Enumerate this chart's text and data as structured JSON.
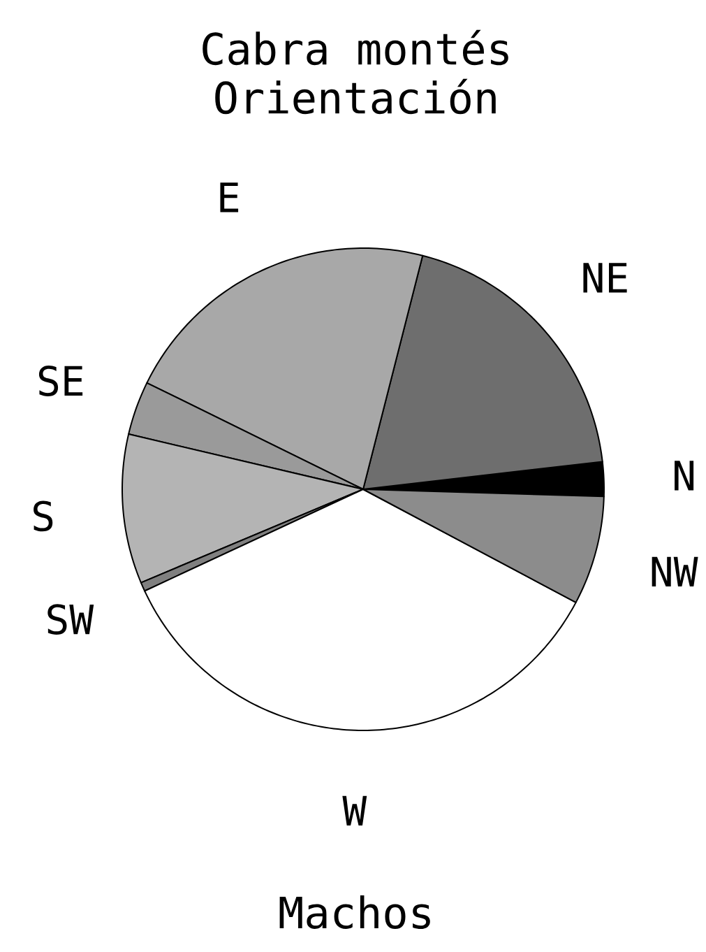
{
  "chart_data": {
    "type": "pie",
    "title": "Cabra montés",
    "subtitle": "Orientación",
    "categories": [
      "N",
      "NE",
      "E",
      "SE",
      "S",
      "SW",
      "W",
      "NW"
    ],
    "values": [
      2.3,
      19.2,
      21.7,
      3.6,
      10.0,
      0.6,
      35.3,
      7.3
    ],
    "colors": [
      "#000000",
      "#6e6e6e",
      "#a8a8a8",
      "#9a9a9a",
      "#b4b4b4",
      "#808080",
      "#ffffff",
      "#8c8c8c"
    ],
    "annotations": [
      "Machos"
    ]
  }
}
